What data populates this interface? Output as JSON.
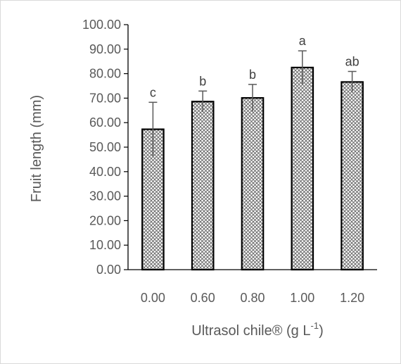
{
  "chart_data": {
    "type": "bar",
    "categories": [
      "0.00",
      "0.60",
      "0.80",
      "1.00",
      "1.20"
    ],
    "values": [
      57.3,
      68.6,
      70.1,
      82.5,
      76.6
    ],
    "error": [
      11.0,
      4.3,
      5.5,
      6.8,
      4.3
    ],
    "significance": [
      "c",
      "b",
      "b",
      "a",
      "ab"
    ],
    "ylabel": "Fruit length (mm)",
    "xlabel": "Ultrasol chile® (g L",
    "xlabel_sup": "-1",
    "xlabel_suffix": ")",
    "ylim": [
      0,
      100
    ],
    "yticks": [
      "0.00",
      "10.00",
      "20.00",
      "30.00",
      "40.00",
      "50.00",
      "60.00",
      "70.00",
      "80.00",
      "90.00",
      "100.00"
    ],
    "bar_pattern": "crosshatch",
    "grid": false,
    "colors": {
      "bar_fill": "#ffffff",
      "hatch": "#595959",
      "bar_edge": "#000000",
      "axis": "#000000",
      "text": "#595959"
    }
  }
}
